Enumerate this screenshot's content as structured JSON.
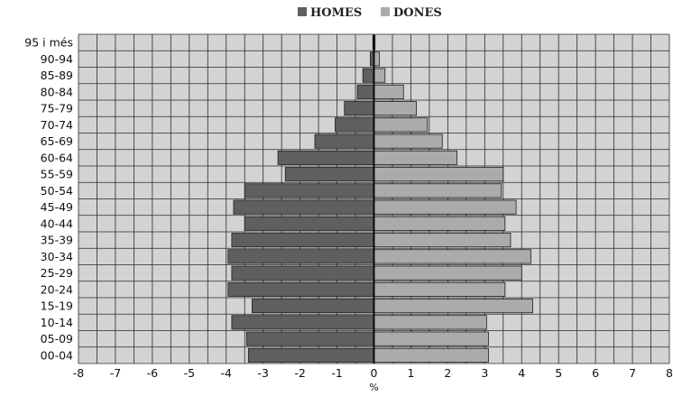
{
  "chart_data": {
    "type": "bar",
    "orientation": "horizontal",
    "layout": "population-pyramid",
    "title": "",
    "xlabel": "%",
    "ylabel": "",
    "xlim": [
      -8,
      8
    ],
    "x_ticks": [
      -8,
      -7,
      -6,
      -5,
      -4,
      -3,
      -2,
      -1,
      0,
      1,
      2,
      3,
      4,
      5,
      6,
      7,
      8
    ],
    "grid": true,
    "legend_position": "top-center",
    "categories": [
      "95 i més",
      "90-94",
      "85-89",
      "80-84",
      "75-79",
      "70-74",
      "65-69",
      "60-64",
      "55-59",
      "50-54",
      "45-49",
      "40-44",
      "35-39",
      "30-34",
      "25-29",
      "20-24",
      "15-19",
      "10-14",
      "05-09",
      "00-04"
    ],
    "series": [
      {
        "name": "HOMES",
        "color": "#5f5f5f",
        "values": [
          -0.03,
          -0.1,
          -0.3,
          -0.45,
          -0.8,
          -1.05,
          -1.6,
          -2.6,
          -2.4,
          -3.5,
          -3.8,
          -3.5,
          -3.85,
          -3.95,
          -3.85,
          -3.95,
          -3.3,
          -3.85,
          -3.45,
          -3.4
        ]
      },
      {
        "name": "DONES",
        "color": "#ababab",
        "values": [
          0.03,
          0.15,
          0.3,
          0.8,
          1.15,
          1.45,
          1.85,
          2.25,
          3.5,
          3.45,
          3.85,
          3.55,
          3.7,
          4.25,
          4.0,
          3.55,
          4.3,
          3.05,
          3.1,
          3.1
        ]
      }
    ],
    "colors": {
      "plot_background": "#d3d3d3",
      "grid": "#2a2a2a",
      "zero_line": "#000000"
    }
  }
}
